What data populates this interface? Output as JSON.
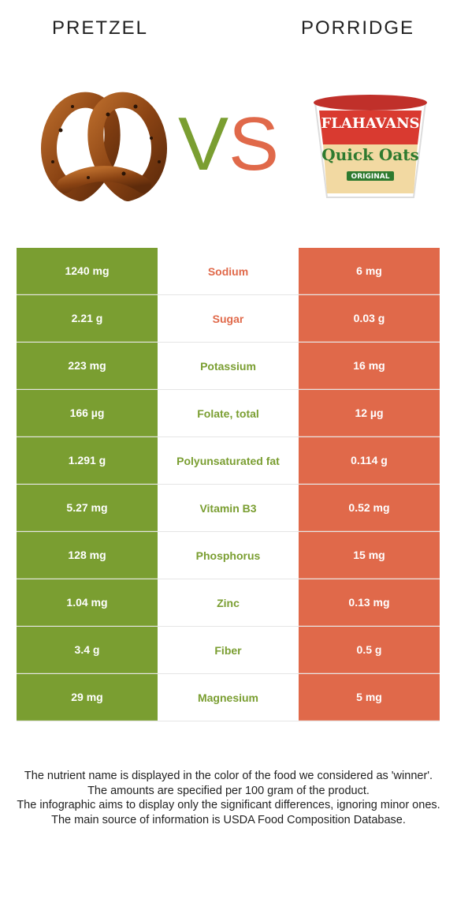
{
  "header": {
    "left_food": "PRETZEL",
    "right_food": "PORRIDGE",
    "vs_v": "V",
    "vs_s": "S"
  },
  "colors": {
    "winner_left": "#7a9e31",
    "winner_right": "#e0694a"
  },
  "images": {
    "left": "pretzel-photo",
    "right": "flahavans-quick-oats-pot-photo",
    "right_brand_text": "FLAHAVANS",
    "right_product_text": "Quick Oats",
    "right_variant_text": "ORIGINAL"
  },
  "rows": [
    {
      "left": "1240 mg",
      "nutrient": "Sodium",
      "right": "6 mg",
      "winner": "right"
    },
    {
      "left": "2.21 g",
      "nutrient": "Sugar",
      "right": "0.03 g",
      "winner": "right"
    },
    {
      "left": "223 mg",
      "nutrient": "Potassium",
      "right": "16 mg",
      "winner": "left"
    },
    {
      "left": "166 µg",
      "nutrient": "Folate, total",
      "right": "12 µg",
      "winner": "left"
    },
    {
      "left": "1.291 g",
      "nutrient": "Polyunsaturated fat",
      "right": "0.114 g",
      "winner": "left"
    },
    {
      "left": "5.27 mg",
      "nutrient": "Vitamin B3",
      "right": "0.52 mg",
      "winner": "left"
    },
    {
      "left": "128 mg",
      "nutrient": "Phosphorus",
      "right": "15 mg",
      "winner": "left"
    },
    {
      "left": "1.04 mg",
      "nutrient": "Zinc",
      "right": "0.13 mg",
      "winner": "left"
    },
    {
      "left": "3.4 g",
      "nutrient": "Fiber",
      "right": "0.5 g",
      "winner": "left"
    },
    {
      "left": "29 mg",
      "nutrient": "Magnesium",
      "right": "5 mg",
      "winner": "left"
    }
  ],
  "footer": {
    "line1": "The nutrient name is displayed in the color of the food we considered as 'winner'.",
    "line2": "The amounts are specified per 100 gram of the product.",
    "line3": "The infographic aims to display only the significant differences, ignoring minor ones.",
    "line4": "The main source of information is USDA Food Composition Database."
  }
}
